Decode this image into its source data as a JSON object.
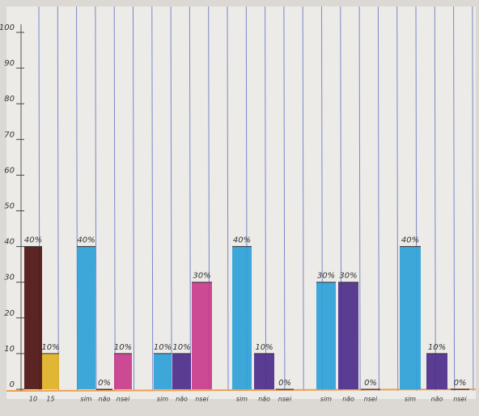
{
  "chart_data": {
    "type": "bar",
    "categories": [
      "10",
      "15",
      "sim",
      "não",
      "nsei",
      "sim",
      "não",
      "nsei",
      "sim",
      "não",
      "nsei",
      "sim",
      "não",
      "nsei",
      "sim",
      "não",
      "nsei"
    ],
    "values": [
      40,
      10,
      40,
      0,
      10,
      10,
      10,
      30,
      40,
      10,
      0,
      30,
      30,
      0,
      40,
      10,
      0
    ],
    "value_labels": [
      "40%",
      "10%",
      "40%",
      "0%",
      "10%",
      "10%",
      "10%",
      "30%",
      "40%",
      "10%",
      "0%",
      "30%",
      "30%",
      "0%",
      "40%",
      "10%",
      "0%"
    ],
    "colors": [
      "#4a0f0c",
      "#e0b020",
      "#2aa0d8",
      "#4a2a8a",
      "#c8388a",
      "#2aa0d8",
      "#4a2a8a",
      "#c8388a",
      "#2aa0d8",
      "#4a2a8a",
      "#c8388a",
      "#2aa0d8",
      "#4a2a8a",
      "#c8388a",
      "#2aa0d8",
      "#4a2a8a",
      "#c8388a"
    ],
    "ylim": [
      0,
      100
    ],
    "yticks": [
      0,
      10,
      20,
      30,
      40,
      50,
      60,
      70,
      80,
      90,
      100
    ]
  }
}
